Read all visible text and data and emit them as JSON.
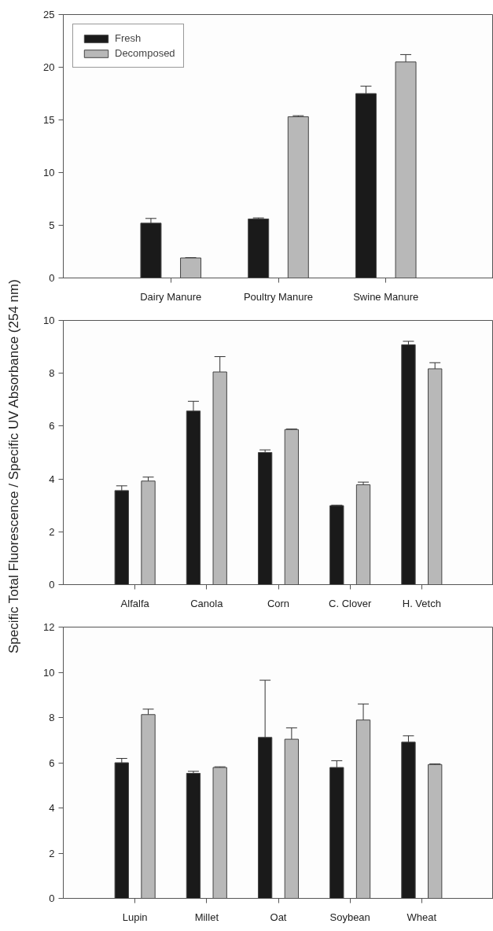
{
  "chart_data": [
    {
      "type": "bar",
      "categories": [
        "Dairy Manure",
        "Poultry Manure",
        "Swine Manure"
      ],
      "ylim": [
        0,
        25
      ],
      "yticks": [
        0,
        5,
        10,
        15,
        20,
        25
      ],
      "legend": "top left",
      "grid": false,
      "series": [
        {
          "name": "Fresh",
          "color": "#1a1a1a",
          "values": [
            5.2,
            5.6,
            17.5
          ],
          "errors": [
            0.45,
            0.1,
            0.7
          ]
        },
        {
          "name": "Decomposed",
          "color": "#b8b8b8",
          "values": [
            1.9,
            15.3,
            20.5
          ],
          "errors": [
            0.03,
            0.1,
            0.7
          ]
        }
      ]
    },
    {
      "type": "bar",
      "categories": [
        "Alfalfa",
        "Canola",
        "Corn",
        "C. Clover",
        "H. Vetch"
      ],
      "ylim": [
        0,
        10
      ],
      "yticks": [
        0,
        2,
        4,
        6,
        8,
        10
      ],
      "ylabel": "Specific Total Fluorescence / Specific UV Absorbance (254 nm)",
      "grid": false,
      "series": [
        {
          "color": "#1a1a1a",
          "values": [
            3.56,
            6.57,
            5.0,
            2.99,
            9.08
          ],
          "errors": [
            0.18,
            0.37,
            0.1,
            0.02,
            0.13
          ]
        },
        {
          "color": "#b8b8b8",
          "values": [
            3.92,
            8.05,
            5.87,
            3.78,
            8.17
          ],
          "errors": [
            0.15,
            0.58,
            0.02,
            0.1,
            0.23
          ]
        }
      ]
    },
    {
      "type": "bar",
      "categories": [
        "Lupin",
        "Millet",
        "Oat",
        "Soybean",
        "Wheat"
      ],
      "ylim": [
        0,
        12
      ],
      "yticks": [
        0,
        2,
        4,
        6,
        8,
        10,
        12
      ],
      "grid": false,
      "series": [
        {
          "color": "#1a1a1a",
          "values": [
            6.0,
            5.53,
            7.12,
            5.79,
            6.91
          ],
          "errors": [
            0.19,
            0.09,
            2.53,
            0.3,
            0.28
          ]
        },
        {
          "color": "#b8b8b8",
          "values": [
            8.13,
            5.79,
            7.04,
            7.89,
            5.92
          ],
          "errors": [
            0.24,
            0.03,
            0.5,
            0.71,
            0.03
          ]
        }
      ]
    }
  ]
}
